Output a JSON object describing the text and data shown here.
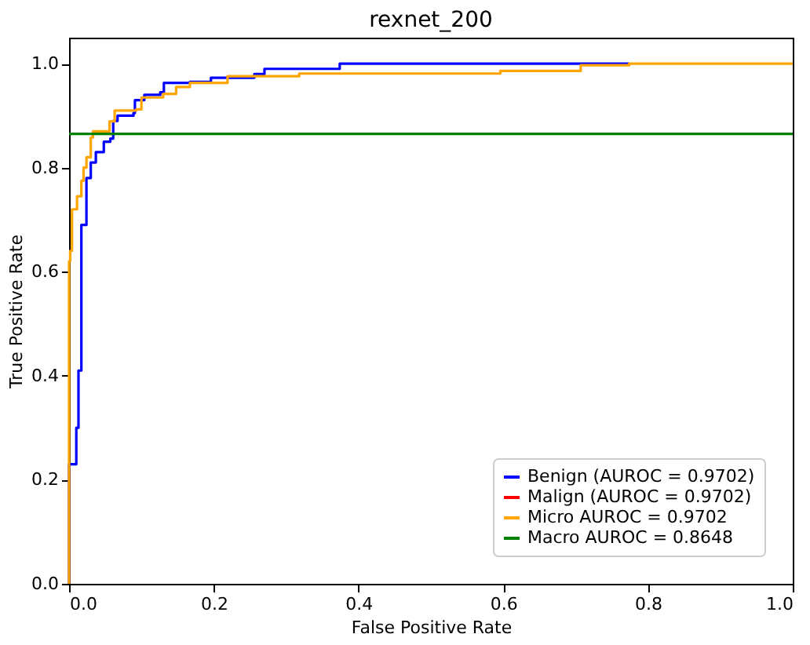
{
  "chart_data": {
    "type": "line",
    "title": "rexnet_200",
    "xlabel": "False Positive Rate",
    "ylabel": "True Positive Rate",
    "xlim": [
      0,
      1
    ],
    "ylim": [
      0,
      1.05
    ],
    "xticks": [
      {
        "value": 0,
        "label": "0.0"
      },
      0.2,
      0.4,
      0.6,
      0.8,
      {
        "value": 1,
        "label": "1.0"
      }
    ],
    "yticks": [
      {
        "value": 0,
        "label": "0.0"
      },
      0.2,
      0.4,
      0.6,
      0.8,
      {
        "value": 1,
        "label": "1.0"
      }
    ],
    "grid": false,
    "legend": "bottom right",
    "marker": "none",
    "line_style": "solid",
    "series": [
      {
        "name": "Benign (AUROC = 0.9702)",
        "color": "#0000ff",
        "x": [
          0,
          0,
          0.002,
          0.002,
          0.01,
          0.01,
          0.013,
          0.013,
          0.017,
          0.017,
          0.024,
          0.024,
          0.03,
          0.03,
          0.037,
          0.037,
          0.048,
          0.048,
          0.057,
          0.057,
          0.061,
          0.061,
          0.067,
          0.067,
          0.089,
          0.089,
          0.091,
          0.091,
          0.104,
          0.104,
          0.126,
          0.126,
          0.131,
          0.131,
          0.167,
          0.167,
          0.196,
          0.196,
          0.256,
          0.256,
          0.27,
          0.27,
          0.374,
          0.374,
          0.774
        ],
        "values": [
          0,
          0.23,
          0.23,
          0.23,
          0.23,
          0.3,
          0.3,
          0.41,
          0.41,
          0.69,
          0.69,
          0.78,
          0.78,
          0.81,
          0.81,
          0.83,
          0.83,
          0.85,
          0.85,
          0.856,
          0.856,
          0.89,
          0.89,
          0.9,
          0.9,
          0.905,
          0.905,
          0.93,
          0.93,
          0.94,
          0.94,
          0.945,
          0.945,
          0.963,
          0.963,
          0.965,
          0.965,
          0.973,
          0.973,
          0.98,
          0.98,
          0.99,
          0.99,
          1,
          1
        ]
      },
      {
        "name": "Malign (AUROC = 0.9702)",
        "color": "#ff0000"
      },
      {
        "name": "Micro AUROC = 0.9702",
        "color": "#ffa500",
        "x": [
          0,
          0,
          0.0015,
          0.0015,
          0.004,
          0.004,
          0.011,
          0.011,
          0.017,
          0.017,
          0.02,
          0.02,
          0.024,
          0.024,
          0.03,
          0.03,
          0.033,
          0.033,
          0.048,
          0.048,
          0.056,
          0.056,
          0.063,
          0.063,
          0.093,
          0.093,
          0.1,
          0.1,
          0.13,
          0.13,
          0.148,
          0.148,
          0.167,
          0.167,
          0.219,
          0.219,
          0.318,
          0.318,
          0.596,
          0.596,
          0.707,
          0.707,
          0.774,
          0.774,
          1
        ],
        "values": [
          0,
          0.62,
          0.62,
          0.64,
          0.64,
          0.72,
          0.72,
          0.745,
          0.745,
          0.775,
          0.775,
          0.8,
          0.8,
          0.82,
          0.82,
          0.858,
          0.858,
          0.87,
          0.87,
          0.87,
          0.87,
          0.889,
          0.889,
          0.91,
          0.91,
          0.912,
          0.912,
          0.935,
          0.935,
          0.942,
          0.942,
          0.955,
          0.955,
          0.963,
          0.963,
          0.976,
          0.976,
          0.981,
          0.981,
          0.986,
          0.986,
          0.997,
          0.997,
          1,
          1
        ]
      },
      {
        "name": "Macro AUROC = 0.8648",
        "color": "#008000",
        "x": [
          0,
          1
        ],
        "values": [
          0.865,
          0.865
        ]
      }
    ]
  }
}
